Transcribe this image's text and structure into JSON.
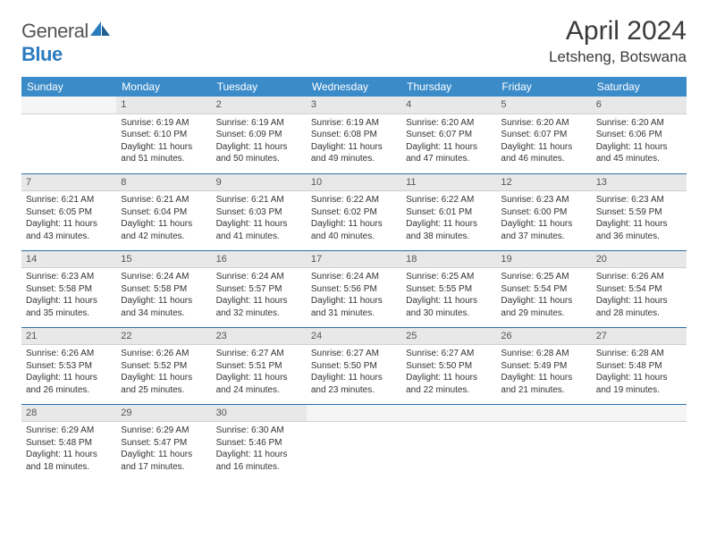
{
  "brand": {
    "general": "General",
    "blue": "Blue"
  },
  "title": "April 2024",
  "location": "Letsheng, Botswana",
  "colors": {
    "header_bg": "#3b8bc9",
    "header_text": "#ffffff",
    "daynum_bg": "#e8e8e8",
    "row_border": "#2b6fa8",
    "brand_gray": "#555555",
    "brand_blue": "#2b7bbf"
  },
  "weekdays": [
    "Sunday",
    "Monday",
    "Tuesday",
    "Wednesday",
    "Thursday",
    "Friday",
    "Saturday"
  ],
  "weeks": [
    [
      null,
      {
        "d": "1",
        "sr": "Sunrise: 6:19 AM",
        "ss": "Sunset: 6:10 PM",
        "dl1": "Daylight: 11 hours",
        "dl2": "and 51 minutes."
      },
      {
        "d": "2",
        "sr": "Sunrise: 6:19 AM",
        "ss": "Sunset: 6:09 PM",
        "dl1": "Daylight: 11 hours",
        "dl2": "and 50 minutes."
      },
      {
        "d": "3",
        "sr": "Sunrise: 6:19 AM",
        "ss": "Sunset: 6:08 PM",
        "dl1": "Daylight: 11 hours",
        "dl2": "and 49 minutes."
      },
      {
        "d": "4",
        "sr": "Sunrise: 6:20 AM",
        "ss": "Sunset: 6:07 PM",
        "dl1": "Daylight: 11 hours",
        "dl2": "and 47 minutes."
      },
      {
        "d": "5",
        "sr": "Sunrise: 6:20 AM",
        "ss": "Sunset: 6:07 PM",
        "dl1": "Daylight: 11 hours",
        "dl2": "and 46 minutes."
      },
      {
        "d": "6",
        "sr": "Sunrise: 6:20 AM",
        "ss": "Sunset: 6:06 PM",
        "dl1": "Daylight: 11 hours",
        "dl2": "and 45 minutes."
      }
    ],
    [
      {
        "d": "7",
        "sr": "Sunrise: 6:21 AM",
        "ss": "Sunset: 6:05 PM",
        "dl1": "Daylight: 11 hours",
        "dl2": "and 43 minutes."
      },
      {
        "d": "8",
        "sr": "Sunrise: 6:21 AM",
        "ss": "Sunset: 6:04 PM",
        "dl1": "Daylight: 11 hours",
        "dl2": "and 42 minutes."
      },
      {
        "d": "9",
        "sr": "Sunrise: 6:21 AM",
        "ss": "Sunset: 6:03 PM",
        "dl1": "Daylight: 11 hours",
        "dl2": "and 41 minutes."
      },
      {
        "d": "10",
        "sr": "Sunrise: 6:22 AM",
        "ss": "Sunset: 6:02 PM",
        "dl1": "Daylight: 11 hours",
        "dl2": "and 40 minutes."
      },
      {
        "d": "11",
        "sr": "Sunrise: 6:22 AM",
        "ss": "Sunset: 6:01 PM",
        "dl1": "Daylight: 11 hours",
        "dl2": "and 38 minutes."
      },
      {
        "d": "12",
        "sr": "Sunrise: 6:23 AM",
        "ss": "Sunset: 6:00 PM",
        "dl1": "Daylight: 11 hours",
        "dl2": "and 37 minutes."
      },
      {
        "d": "13",
        "sr": "Sunrise: 6:23 AM",
        "ss": "Sunset: 5:59 PM",
        "dl1": "Daylight: 11 hours",
        "dl2": "and 36 minutes."
      }
    ],
    [
      {
        "d": "14",
        "sr": "Sunrise: 6:23 AM",
        "ss": "Sunset: 5:58 PM",
        "dl1": "Daylight: 11 hours",
        "dl2": "and 35 minutes."
      },
      {
        "d": "15",
        "sr": "Sunrise: 6:24 AM",
        "ss": "Sunset: 5:58 PM",
        "dl1": "Daylight: 11 hours",
        "dl2": "and 34 minutes."
      },
      {
        "d": "16",
        "sr": "Sunrise: 6:24 AM",
        "ss": "Sunset: 5:57 PM",
        "dl1": "Daylight: 11 hours",
        "dl2": "and 32 minutes."
      },
      {
        "d": "17",
        "sr": "Sunrise: 6:24 AM",
        "ss": "Sunset: 5:56 PM",
        "dl1": "Daylight: 11 hours",
        "dl2": "and 31 minutes."
      },
      {
        "d": "18",
        "sr": "Sunrise: 6:25 AM",
        "ss": "Sunset: 5:55 PM",
        "dl1": "Daylight: 11 hours",
        "dl2": "and 30 minutes."
      },
      {
        "d": "19",
        "sr": "Sunrise: 6:25 AM",
        "ss": "Sunset: 5:54 PM",
        "dl1": "Daylight: 11 hours",
        "dl2": "and 29 minutes."
      },
      {
        "d": "20",
        "sr": "Sunrise: 6:26 AM",
        "ss": "Sunset: 5:54 PM",
        "dl1": "Daylight: 11 hours",
        "dl2": "and 28 minutes."
      }
    ],
    [
      {
        "d": "21",
        "sr": "Sunrise: 6:26 AM",
        "ss": "Sunset: 5:53 PM",
        "dl1": "Daylight: 11 hours",
        "dl2": "and 26 minutes."
      },
      {
        "d": "22",
        "sr": "Sunrise: 6:26 AM",
        "ss": "Sunset: 5:52 PM",
        "dl1": "Daylight: 11 hours",
        "dl2": "and 25 minutes."
      },
      {
        "d": "23",
        "sr": "Sunrise: 6:27 AM",
        "ss": "Sunset: 5:51 PM",
        "dl1": "Daylight: 11 hours",
        "dl2": "and 24 minutes."
      },
      {
        "d": "24",
        "sr": "Sunrise: 6:27 AM",
        "ss": "Sunset: 5:50 PM",
        "dl1": "Daylight: 11 hours",
        "dl2": "and 23 minutes."
      },
      {
        "d": "25",
        "sr": "Sunrise: 6:27 AM",
        "ss": "Sunset: 5:50 PM",
        "dl1": "Daylight: 11 hours",
        "dl2": "and 22 minutes."
      },
      {
        "d": "26",
        "sr": "Sunrise: 6:28 AM",
        "ss": "Sunset: 5:49 PM",
        "dl1": "Daylight: 11 hours",
        "dl2": "and 21 minutes."
      },
      {
        "d": "27",
        "sr": "Sunrise: 6:28 AM",
        "ss": "Sunset: 5:48 PM",
        "dl1": "Daylight: 11 hours",
        "dl2": "and 19 minutes."
      }
    ],
    [
      {
        "d": "28",
        "sr": "Sunrise: 6:29 AM",
        "ss": "Sunset: 5:48 PM",
        "dl1": "Daylight: 11 hours",
        "dl2": "and 18 minutes."
      },
      {
        "d": "29",
        "sr": "Sunrise: 6:29 AM",
        "ss": "Sunset: 5:47 PM",
        "dl1": "Daylight: 11 hours",
        "dl2": "and 17 minutes."
      },
      {
        "d": "30",
        "sr": "Sunrise: 6:30 AM",
        "ss": "Sunset: 5:46 PM",
        "dl1": "Daylight: 11 hours",
        "dl2": "and 16 minutes."
      },
      null,
      null,
      null,
      null
    ]
  ]
}
